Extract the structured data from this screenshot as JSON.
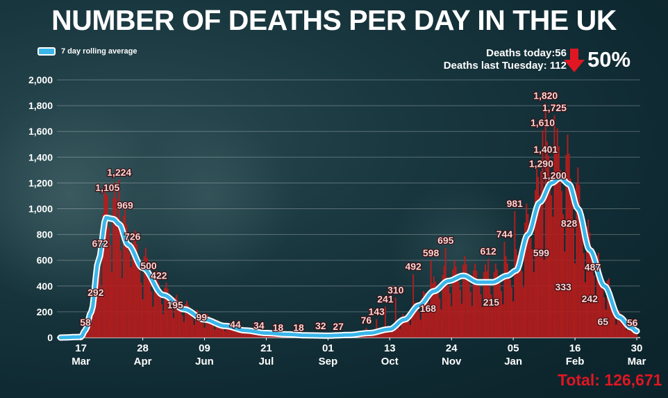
{
  "title": "NUMBER OF DEATHS PER DAY IN THE UK",
  "legend": {
    "label": "7 day rolling average",
    "color": "#3ab6ea"
  },
  "stats": {
    "today_label": "Deaths today:56",
    "last_week_label": "Deaths last Tuesday: 112",
    "change": "50%",
    "arrow_icon": "down-arrow-icon",
    "arrow_color": "#e01622"
  },
  "total": "Total: 126,671",
  "colors": {
    "bars": "#b81c1c",
    "line": "#3ab6ea",
    "total": "#e01622"
  },
  "chart_data": {
    "type": "bar",
    "ylim": [
      0,
      2000
    ],
    "y_ticks": [
      "0",
      "200",
      "400",
      "600",
      "800",
      "1,000",
      "1,200",
      "1,400",
      "1,600",
      "1,800",
      "2,000"
    ],
    "x_ticks": [
      {
        "day": "17",
        "month": "Mar",
        "index": 14
      },
      {
        "day": "28",
        "month": "Apr",
        "index": 56
      },
      {
        "day": "09",
        "month": "Jun",
        "index": 98
      },
      {
        "day": "21",
        "month": "Jul",
        "index": 140
      },
      {
        "day": "01",
        "month": "Sep",
        "index": 182
      },
      {
        "day": "13",
        "month": "Oct",
        "index": 224
      },
      {
        "day": "24",
        "month": "Nov",
        "index": 266
      },
      {
        "day": "05",
        "month": "Jan",
        "index": 308
      },
      {
        "day": "16",
        "month": "Feb",
        "index": 350
      },
      {
        "day": "30",
        "month": "Mar",
        "index": 392
      }
    ],
    "n_days": 393,
    "rolling_average_anchors": [
      [
        0,
        0
      ],
      [
        14,
        5
      ],
      [
        17,
        58
      ],
      [
        21,
        200
      ],
      [
        26,
        600
      ],
      [
        31,
        930
      ],
      [
        36,
        920
      ],
      [
        40,
        880
      ],
      [
        46,
        720
      ],
      [
        56,
        540
      ],
      [
        70,
        330
      ],
      [
        84,
        220
      ],
      [
        98,
        140
      ],
      [
        112,
        90
      ],
      [
        126,
        55
      ],
      [
        140,
        35
      ],
      [
        154,
        25
      ],
      [
        168,
        17
      ],
      [
        182,
        15
      ],
      [
        196,
        20
      ],
      [
        210,
        35
      ],
      [
        224,
        65
      ],
      [
        234,
        140
      ],
      [
        244,
        250
      ],
      [
        254,
        360
      ],
      [
        264,
        440
      ],
      [
        274,
        480
      ],
      [
        284,
        430
      ],
      [
        294,
        430
      ],
      [
        304,
        480
      ],
      [
        310,
        520
      ],
      [
        318,
        800
      ],
      [
        326,
        1050
      ],
      [
        334,
        1200
      ],
      [
        340,
        1240
      ],
      [
        346,
        1190
      ],
      [
        352,
        1000
      ],
      [
        360,
        680
      ],
      [
        370,
        400
      ],
      [
        380,
        160
      ],
      [
        388,
        80
      ],
      [
        392,
        50
      ]
    ],
    "data_labels": [
      {
        "text": "58",
        "day": 17,
        "value": 58
      },
      {
        "text": "292",
        "day": 24,
        "value": 292
      },
      {
        "text": "672",
        "day": 27,
        "value": 672
      },
      {
        "text": "1,105",
        "day": 32,
        "value": 1105
      },
      {
        "text": "1,224",
        "day": 40,
        "value": 1224
      },
      {
        "text": "969",
        "day": 44,
        "value": 969
      },
      {
        "text": "726",
        "day": 49,
        "value": 726
      },
      {
        "text": "500",
        "day": 60,
        "value": 500
      },
      {
        "text": "422",
        "day": 67,
        "value": 422
      },
      {
        "text": "195",
        "day": 78,
        "value": 195
      },
      {
        "text": "99",
        "day": 96,
        "value": 99
      },
      {
        "text": "44",
        "day": 119,
        "value": 44
      },
      {
        "text": "34",
        "day": 135,
        "value": 34
      },
      {
        "text": "18",
        "day": 148,
        "value": 18
      },
      {
        "text": "18",
        "day": 162,
        "value": 18
      },
      {
        "text": "32",
        "day": 177,
        "value": 32
      },
      {
        "text": "27",
        "day": 189,
        "value": 27
      },
      {
        "text": "76",
        "day": 208,
        "value": 76
      },
      {
        "text": "143",
        "day": 215,
        "value": 143
      },
      {
        "text": "241",
        "day": 221,
        "value": 241
      },
      {
        "text": "310",
        "day": 228,
        "value": 310
      },
      {
        "text": "492",
        "day": 240,
        "value": 492
      },
      {
        "text": "168",
        "day": 250,
        "value": 168
      },
      {
        "text": "598",
        "day": 252,
        "value": 598
      },
      {
        "text": "695",
        "day": 262,
        "value": 695
      },
      {
        "text": "215",
        "day": 293,
        "value": 215
      },
      {
        "text": "612",
        "day": 291,
        "value": 612
      },
      {
        "text": "744",
        "day": 302,
        "value": 744
      },
      {
        "text": "981",
        "day": 309,
        "value": 981
      },
      {
        "text": "599",
        "day": 327,
        "value": 599
      },
      {
        "text": "1,290",
        "day": 327,
        "value": 1290
      },
      {
        "text": "1,401",
        "day": 330,
        "value": 1401
      },
      {
        "text": "1,610",
        "day": 328,
        "value": 1610
      },
      {
        "text": "1,820",
        "day": 330,
        "value": 1820
      },
      {
        "text": "1,725",
        "day": 336,
        "value": 1725
      },
      {
        "text": "1,200",
        "day": 336,
        "value": 1200
      },
      {
        "text": "828",
        "day": 346,
        "value": 828
      },
      {
        "text": "333",
        "day": 342,
        "value": 333
      },
      {
        "text": "487",
        "day": 362,
        "value": 487
      },
      {
        "text": "242",
        "day": 360,
        "value": 242
      },
      {
        "text": "65",
        "day": 369,
        "value": 65
      },
      {
        "text": "56",
        "day": 389,
        "value": 56
      }
    ]
  }
}
